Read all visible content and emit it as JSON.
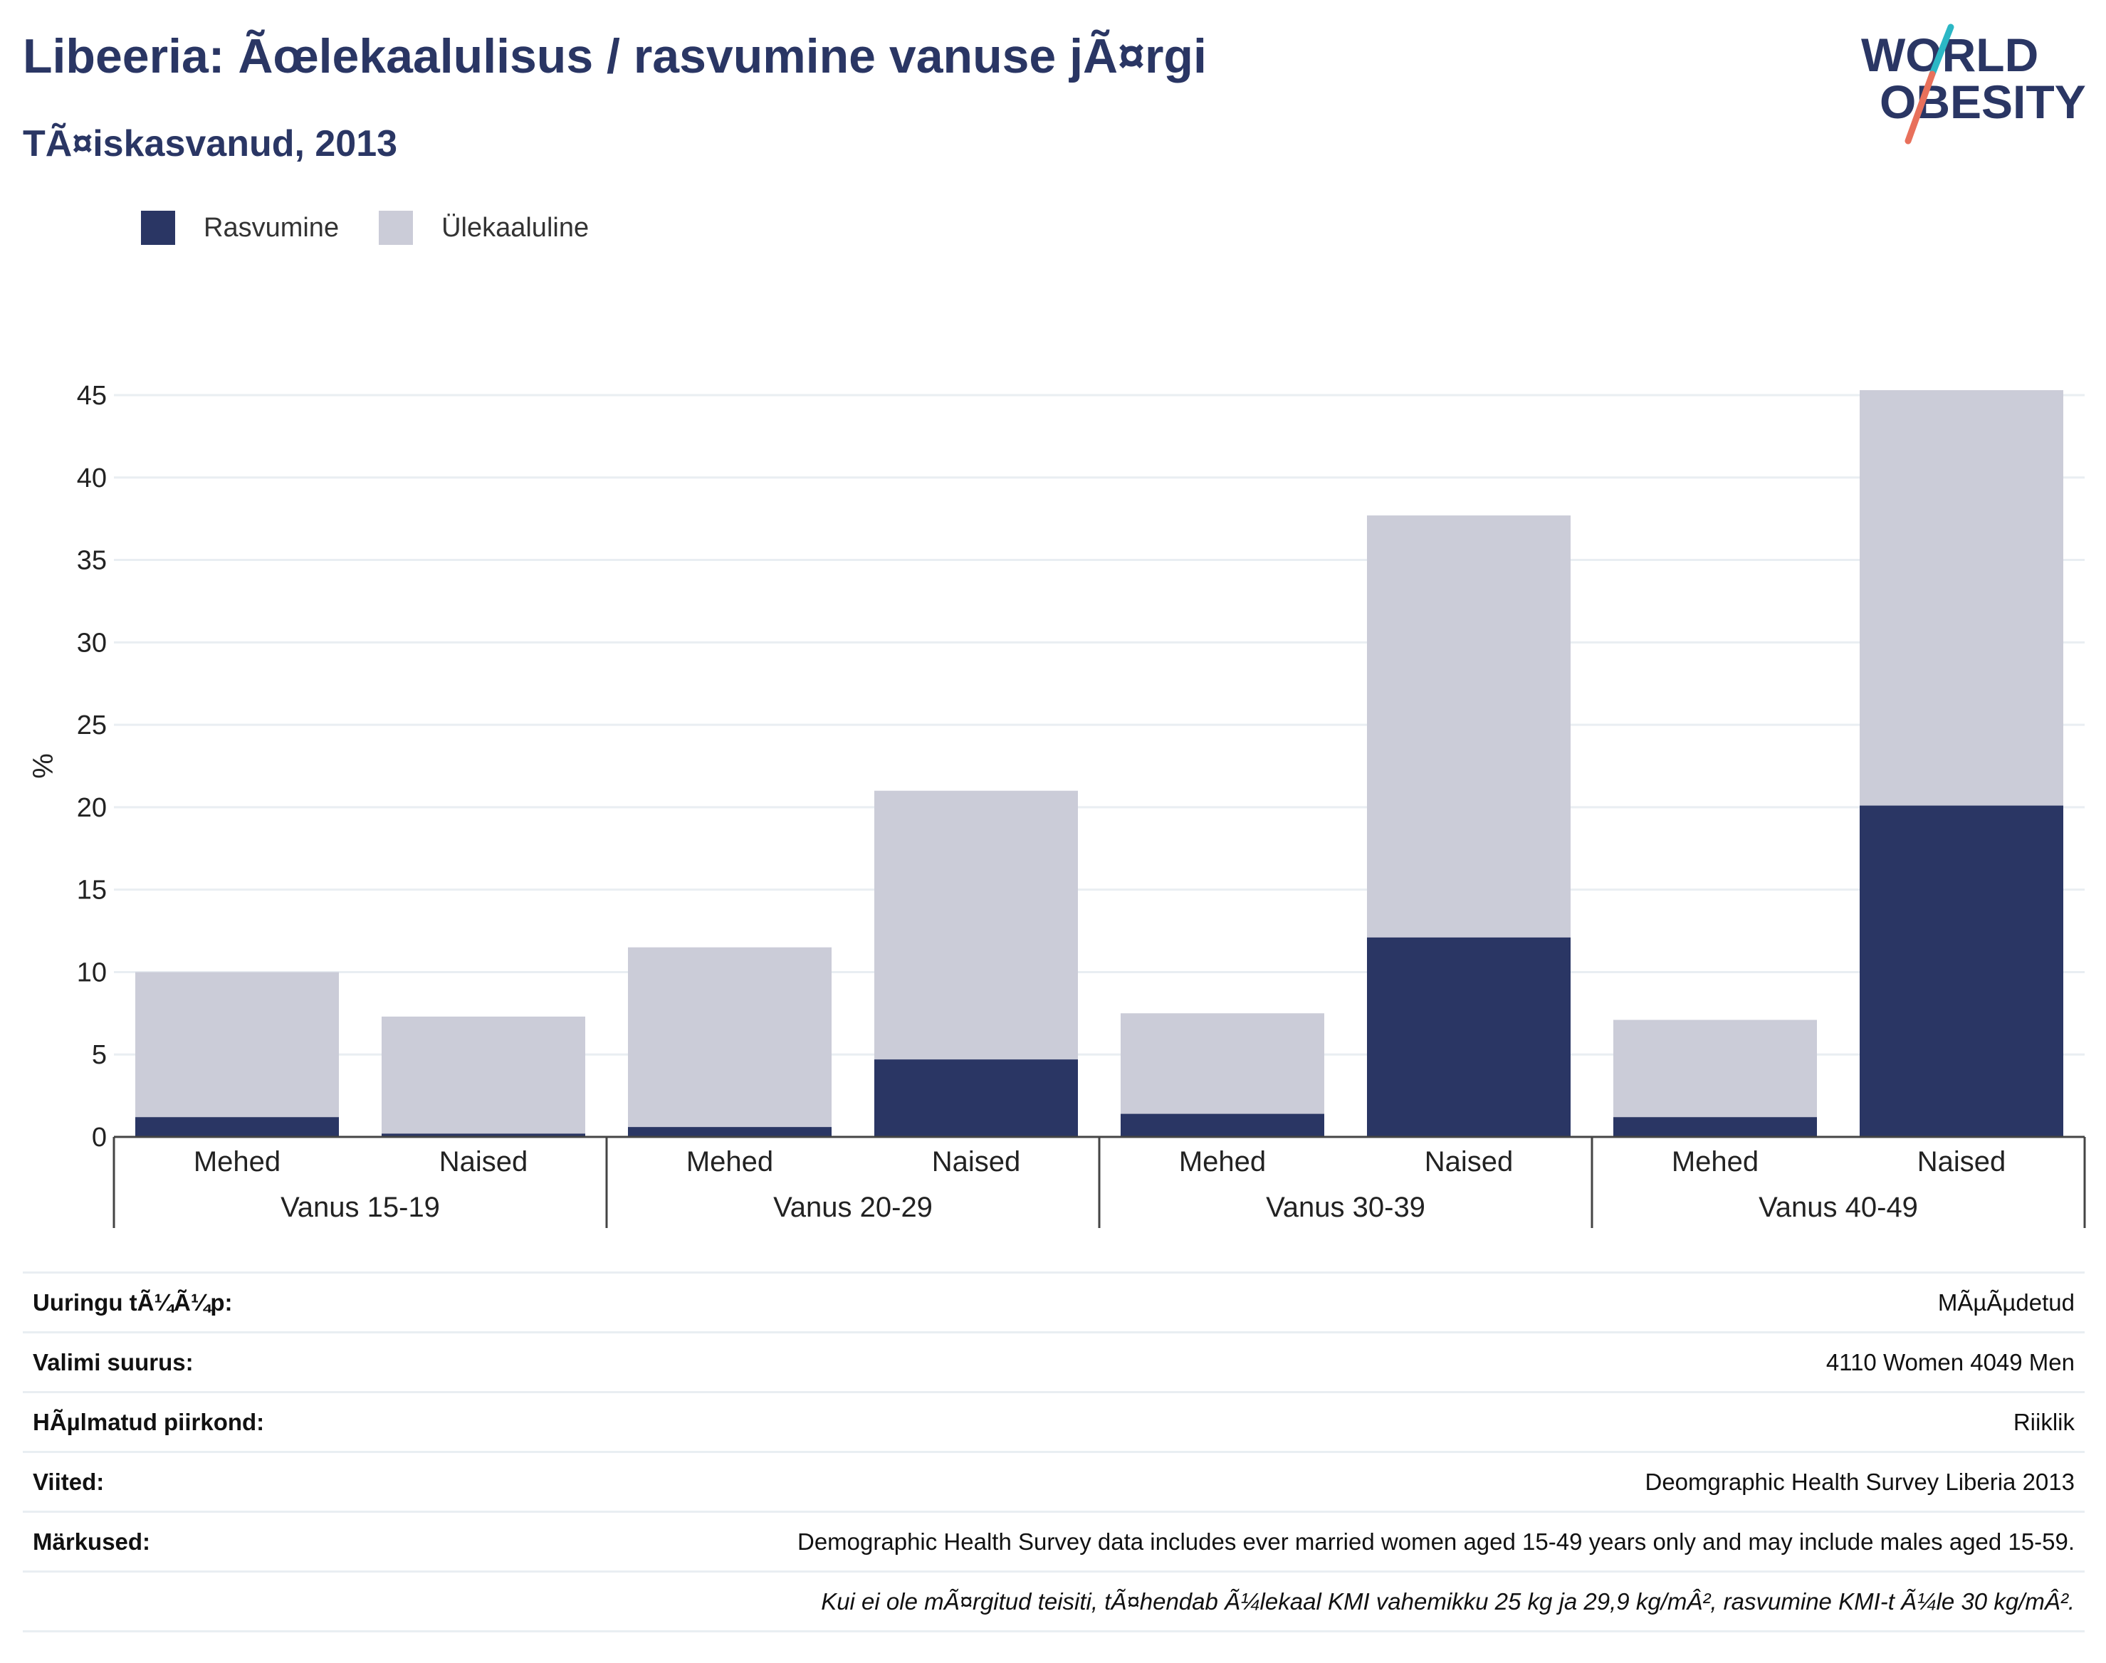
{
  "header": {
    "title": "Libeeria: Ãœlekaalulisus / rasvumine vanuse jÃ¤rgi",
    "subtitle": "TÃ¤iskasvanud, 2013"
  },
  "logo": {
    "line1": "WORLD",
    "line2": "OBESITY",
    "slash_colors": [
      "#2bb7c5",
      "#e8705b"
    ]
  },
  "colors": {
    "obesity": "#2a3664",
    "overweight": "#cbccd8",
    "grid": "#e9eef2",
    "axis": "#444444"
  },
  "legend": [
    {
      "label": "Rasvumine",
      "color": "#2a3664"
    },
    {
      "label": "Ülekaaluline",
      "color": "#cbccd8"
    }
  ],
  "chart_data": {
    "type": "bar",
    "stacked": true,
    "ylabel": "%",
    "ylim": [
      0,
      45
    ],
    "yticks": [
      0,
      5,
      10,
      15,
      20,
      25,
      30,
      35,
      40,
      45
    ],
    "grid": true,
    "legend_position": "top-left",
    "groups": [
      "Vanus 15-19",
      "Vanus 20-29",
      "Vanus 30-39",
      "Vanus 40-49"
    ],
    "categories": [
      "Mehed",
      "Naised",
      "Mehed",
      "Naised",
      "Mehed",
      "Naised",
      "Mehed",
      "Naised"
    ],
    "series": [
      {
        "name": "Rasvumine",
        "values": [
          1.2,
          0.2,
          0.6,
          4.7,
          1.4,
          12.1,
          1.2,
          20.1
        ]
      },
      {
        "name": "Ülekaaluline",
        "values": [
          8.8,
          7.1,
          10.9,
          16.3,
          6.1,
          25.6,
          5.9,
          25.2
        ]
      }
    ]
  },
  "info": [
    {
      "label": "Uuringu tÃ¼Ã¼p:",
      "value": "MÃµÃµdetud"
    },
    {
      "label": "Valimi suurus:",
      "value": "4110 Women 4049 Men"
    },
    {
      "label": "HÃµlmatud piirkond:",
      "value": "Riiklik"
    },
    {
      "label": "Viited:",
      "value": "Deomgraphic Health Survey Liberia 2013"
    },
    {
      "label": "Märkused:",
      "value": "Demographic Health Survey data includes ever married women aged 15-49 years only and may include males aged 15-59."
    },
    {
      "label": "",
      "value": "Kui ei ole mÃ¤rgitud teisiti, tÃ¤hendab Ã¼lekaal KMI vahemikku 25 kg ja 29,9 kg/mÂ², rasvumine KMI-t Ã¼le 30 kg/mÂ²."
    }
  ]
}
